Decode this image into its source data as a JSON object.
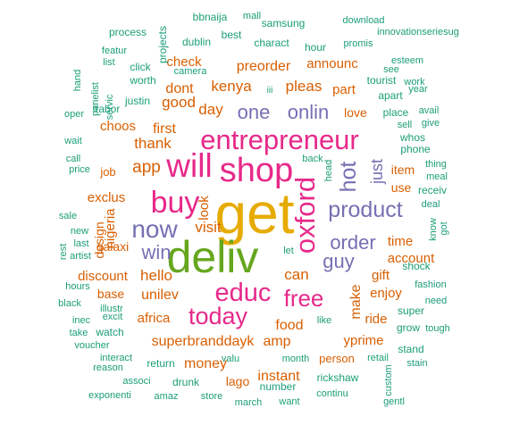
{
  "colors": {
    "teal": "#1b9e77",
    "orange": "#d95f02",
    "purple": "#7570b3",
    "pink": "#e7298a",
    "green": "#66a61e",
    "gold": "#e6ab02"
  },
  "words": [
    {
      "text": "get",
      "color": "gold"
    },
    {
      "text": "deliv",
      "color": "green"
    },
    {
      "text": "shop",
      "color": "pink"
    },
    {
      "text": "entrepreneur",
      "color": "pink"
    },
    {
      "text": "will",
      "color": "pink"
    },
    {
      "text": "buy",
      "color": "pink"
    },
    {
      "text": "educ",
      "color": "pink"
    },
    {
      "text": "today",
      "color": "pink"
    },
    {
      "text": "oxford",
      "color": "pink"
    },
    {
      "text": "free",
      "color": "pink"
    },
    {
      "text": "now",
      "color": "purple"
    },
    {
      "text": "product",
      "color": "purple"
    },
    {
      "text": "order",
      "color": "purple"
    },
    {
      "text": "guy",
      "color": "purple"
    },
    {
      "text": "win",
      "color": "purple"
    },
    {
      "text": "hot",
      "color": "purple"
    },
    {
      "text": "onlin",
      "color": "purple"
    },
    {
      "text": "one",
      "color": "purple"
    },
    {
      "text": "just",
      "color": "purple"
    },
    {
      "text": "kenya",
      "color": "orange"
    },
    {
      "text": "app",
      "color": "orange"
    },
    {
      "text": "thank",
      "color": "orange"
    },
    {
      "text": "first",
      "color": "orange"
    },
    {
      "text": "choos",
      "color": "orange"
    },
    {
      "text": "good",
      "color": "orange"
    },
    {
      "text": "dont",
      "color": "orange"
    },
    {
      "text": "preorder",
      "color": "orange"
    },
    {
      "text": "check",
      "color": "orange"
    },
    {
      "text": "pleas",
      "color": "orange"
    },
    {
      "text": "day",
      "color": "orange"
    },
    {
      "text": "announc",
      "color": "orange"
    },
    {
      "text": "part",
      "color": "orange"
    },
    {
      "text": "love",
      "color": "orange"
    },
    {
      "text": "item",
      "color": "orange"
    },
    {
      "text": "use",
      "color": "orange"
    },
    {
      "text": "exclus",
      "color": "orange"
    },
    {
      "text": "nigeria",
      "color": "orange"
    },
    {
      "text": "visit",
      "color": "orange"
    },
    {
      "text": "look",
      "color": "orange"
    },
    {
      "text": "hello",
      "color": "orange"
    },
    {
      "text": "discount",
      "color": "orange"
    },
    {
      "text": "unilev",
      "color": "orange"
    },
    {
      "text": "can",
      "color": "orange"
    },
    {
      "text": "make",
      "color": "orange"
    },
    {
      "text": "time",
      "color": "orange"
    },
    {
      "text": "account",
      "color": "orange"
    },
    {
      "text": "gift",
      "color": "orange"
    },
    {
      "text": "enjoy",
      "color": "orange"
    },
    {
      "text": "base",
      "color": "orange"
    },
    {
      "text": "africa",
      "color": "orange"
    },
    {
      "text": "superbranddayk",
      "color": "orange"
    },
    {
      "text": "amp",
      "color": "orange"
    },
    {
      "text": "food",
      "color": "orange"
    },
    {
      "text": "ride",
      "color": "orange"
    },
    {
      "text": "yprime",
      "color": "orange"
    },
    {
      "text": "money",
      "color": "orange"
    },
    {
      "text": "instant",
      "color": "orange"
    },
    {
      "text": "lago",
      "color": "orange"
    },
    {
      "text": "person",
      "color": "orange"
    },
    {
      "text": "design",
      "color": "orange"
    },
    {
      "text": "galaxi",
      "color": "orange"
    },
    {
      "text": "job",
      "color": "orange"
    },
    {
      "text": "process",
      "color": "teal"
    },
    {
      "text": "projects",
      "color": "teal"
    },
    {
      "text": "bbnaija",
      "color": "teal"
    },
    {
      "text": "mall",
      "color": "teal"
    },
    {
      "text": "samsung",
      "color": "teal"
    },
    {
      "text": "download",
      "color": "teal"
    },
    {
      "text": "innovationseriesug",
      "color": "teal"
    },
    {
      "text": "promis",
      "color": "teal"
    },
    {
      "text": "featur",
      "color": "teal"
    },
    {
      "text": "dublin",
      "color": "teal"
    },
    {
      "text": "best",
      "color": "teal"
    },
    {
      "text": "charact",
      "color": "teal"
    },
    {
      "text": "hour",
      "color": "teal"
    },
    {
      "text": "see",
      "color": "teal"
    },
    {
      "text": "esteem",
      "color": "teal"
    },
    {
      "text": "list",
      "color": "teal"
    },
    {
      "text": "camera",
      "color": "teal"
    },
    {
      "text": "click",
      "color": "teal"
    },
    {
      "text": "worth",
      "color": "teal"
    },
    {
      "text": "tourist",
      "color": "teal"
    },
    {
      "text": "work",
      "color": "teal"
    },
    {
      "text": "hand",
      "color": "teal"
    },
    {
      "text": "panelist",
      "color": "teal"
    },
    {
      "text": "servic",
      "color": "teal"
    },
    {
      "text": "justin",
      "color": "teal"
    },
    {
      "text": "iii",
      "color": "teal"
    },
    {
      "text": "apart",
      "color": "teal"
    },
    {
      "text": "year",
      "color": "teal"
    },
    {
      "text": "oper",
      "color": "teal"
    },
    {
      "text": "place",
      "color": "teal"
    },
    {
      "text": "avail",
      "color": "teal"
    },
    {
      "text": "sell",
      "color": "teal"
    },
    {
      "text": "give",
      "color": "teal"
    },
    {
      "text": "wait",
      "color": "teal"
    },
    {
      "text": "irabor",
      "color": "teal"
    },
    {
      "text": "whos",
      "color": "teal"
    },
    {
      "text": "phone",
      "color": "teal"
    },
    {
      "text": "call",
      "color": "teal"
    },
    {
      "text": "back",
      "color": "teal"
    },
    {
      "text": "head",
      "color": "teal"
    },
    {
      "text": "thing",
      "color": "teal"
    },
    {
      "text": "meal",
      "color": "teal"
    },
    {
      "text": "price",
      "color": "teal"
    },
    {
      "text": "receiv",
      "color": "teal"
    },
    {
      "text": "deal",
      "color": "teal"
    },
    {
      "text": "got",
      "color": "teal"
    },
    {
      "text": "know",
      "color": "teal"
    },
    {
      "text": "sale",
      "color": "teal"
    },
    {
      "text": "rest",
      "color": "teal"
    },
    {
      "text": "new",
      "color": "teal"
    },
    {
      "text": "last",
      "color": "teal"
    },
    {
      "text": "artist",
      "color": "teal"
    },
    {
      "text": "let",
      "color": "teal"
    },
    {
      "text": "shock",
      "color": "teal"
    },
    {
      "text": "hours",
      "color": "teal"
    },
    {
      "text": "fashion",
      "color": "teal"
    },
    {
      "text": "black",
      "color": "teal"
    },
    {
      "text": "illustr",
      "color": "teal"
    },
    {
      "text": "need",
      "color": "teal"
    },
    {
      "text": "inec",
      "color": "teal"
    },
    {
      "text": "excit",
      "color": "teal"
    },
    {
      "text": "super",
      "color": "teal"
    },
    {
      "text": "like",
      "color": "teal"
    },
    {
      "text": "take",
      "color": "teal"
    },
    {
      "text": "watch",
      "color": "teal"
    },
    {
      "text": "grow",
      "color": "teal"
    },
    {
      "text": "tough",
      "color": "teal"
    },
    {
      "text": "voucher",
      "color": "teal"
    },
    {
      "text": "interact",
      "color": "teal"
    },
    {
      "text": "reason",
      "color": "teal"
    },
    {
      "text": "return",
      "color": "teal"
    },
    {
      "text": "valu",
      "color": "teal"
    },
    {
      "text": "month",
      "color": "teal"
    },
    {
      "text": "retail",
      "color": "teal"
    },
    {
      "text": "stand",
      "color": "teal"
    },
    {
      "text": "stain",
      "color": "teal"
    },
    {
      "text": "associ",
      "color": "teal"
    },
    {
      "text": "drunk",
      "color": "teal"
    },
    {
      "text": "rickshaw",
      "color": "teal"
    },
    {
      "text": "custom",
      "color": "teal"
    },
    {
      "text": "exponenti",
      "color": "teal"
    },
    {
      "text": "amaz",
      "color": "teal"
    },
    {
      "text": "store",
      "color": "teal"
    },
    {
      "text": "number",
      "color": "teal"
    },
    {
      "text": "continu",
      "color": "teal"
    },
    {
      "text": "march",
      "color": "teal"
    },
    {
      "text": "want",
      "color": "teal"
    },
    {
      "text": "gentl",
      "color": "teal"
    }
  ]
}
